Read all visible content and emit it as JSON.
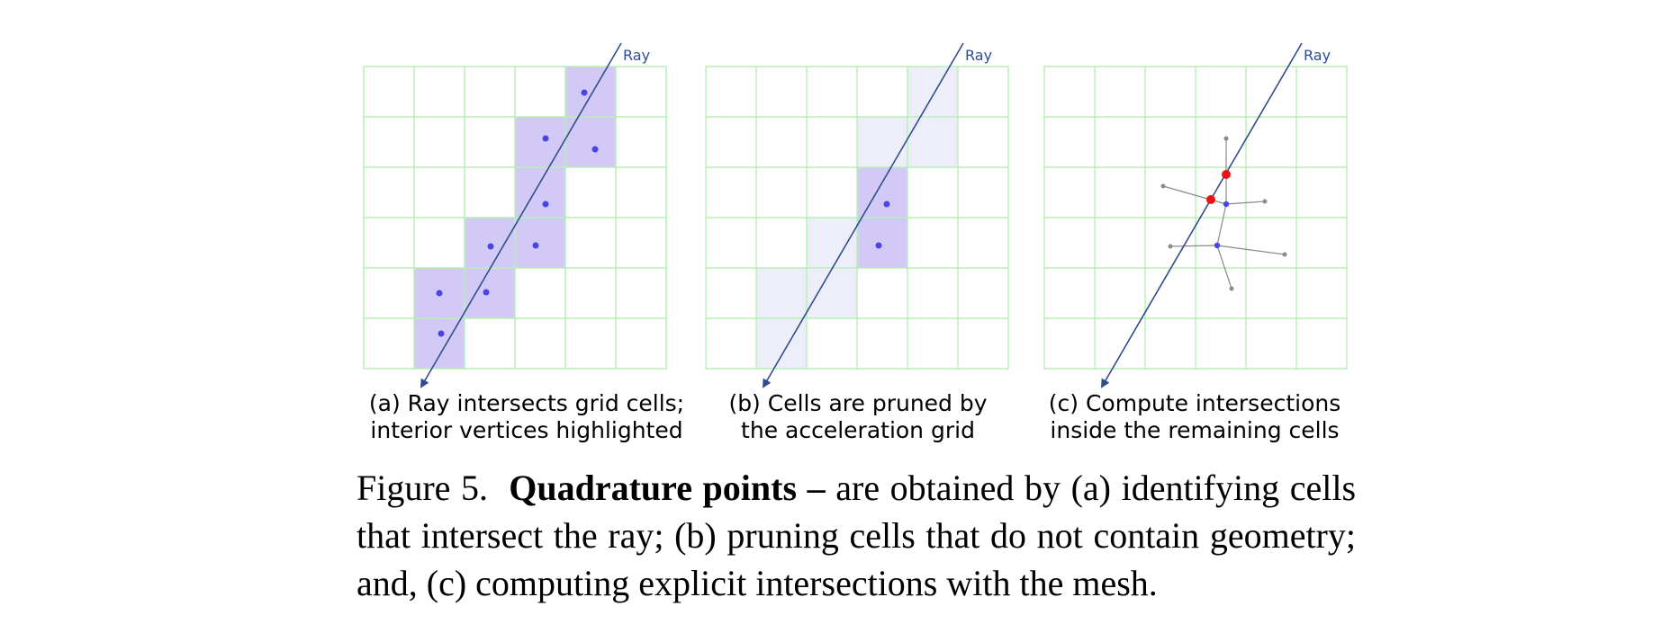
{
  "ray_label": "Ray",
  "panels": [
    {
      "caption_line1": "(a) Ray intersects grid cells;",
      "caption_line2": "interior vertices highlighted"
    },
    {
      "caption_line1": "(b) Cells are pruned by",
      "caption_line2": "the acceleration grid"
    },
    {
      "caption_line1": "(c) Compute intersections",
      "caption_line2": "inside the remaining cells"
    }
  ],
  "caption": {
    "figure_label": "Figure 5.",
    "bold_title": "Quadrature points –",
    "text": "are obtained by (a) identifying cells that intersect the ray; (b) pruning cells that do not contain geometry; and, (c) computing explicit intersections with the mesh."
  },
  "colors": {
    "grid_line": "#b6f0b6",
    "cell_highlight": "#d2c9f7",
    "cell_pruned": "#eeeefb",
    "ray": "#2e4d8f",
    "vertex": "#4a44e6",
    "intersection": "#ee1111",
    "mesh_edge": "#8a8a8a"
  }
}
